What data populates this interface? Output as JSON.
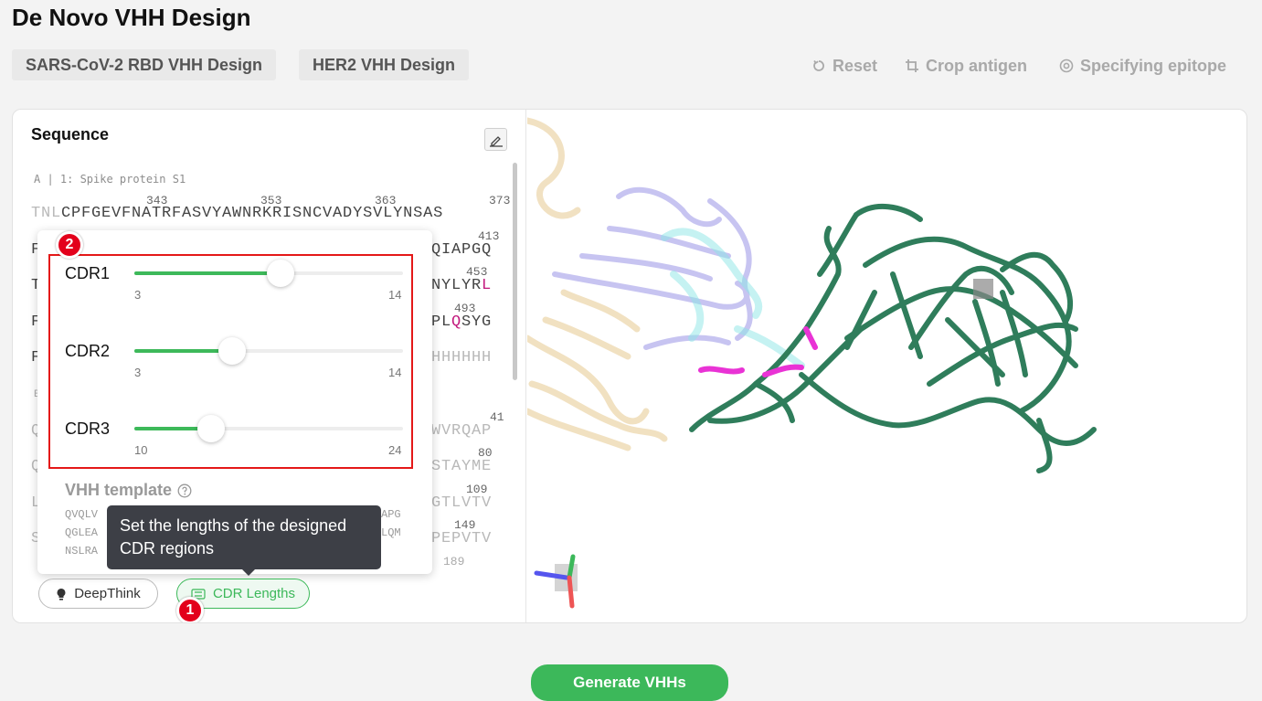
{
  "page_title": "De Novo VHH Design",
  "presets": [
    "SARS-CoV-2 RBD VHH Design",
    "HER2 VHH Design"
  ],
  "toolbar": {
    "reset": "Reset",
    "crop": "Crop antigen",
    "epitope": "Specifying epitope"
  },
  "sequence_panel": {
    "title": "Sequence",
    "chain_label": "A | 1: Spike protein S1",
    "line1": {
      "dim": "TNL",
      "text": "CPFGEVFNATRFASVYAWNRKRISNCVADYSVLYNSAS"
    },
    "line1_numbers": [
      "343",
      "353",
      "363",
      "373"
    ],
    "line2": {
      "left": "F",
      "right": "QIAPGQ"
    },
    "line2_number": "413",
    "line3": {
      "left": "T",
      "right_a": "NYLYR",
      "right_mag": "L"
    },
    "line3_number": "453",
    "line4": {
      "left": "F",
      "right_a": "PL",
      "right_mag": "Q",
      "right_b": "SYG"
    },
    "line4_number": "493",
    "line5": {
      "left": "F",
      "right": "HHHHHH"
    },
    "chain_b_letter": "B",
    "line6": {
      "left": "Q",
      "right": "WVRQAP"
    },
    "line6_number": "41",
    "line7": {
      "left": "Q",
      "right": "STAYME"
    },
    "line7_number": "80",
    "line8": {
      "left": "L",
      "right": "GTLVTV"
    },
    "line8_number": "109",
    "line9": {
      "left": "S",
      "right": "PEPVTV"
    },
    "line9_number": "149",
    "line10_number": "189"
  },
  "cdr_popup": {
    "sliders": [
      {
        "label": "CDR1",
        "min": "3",
        "max": "14",
        "value": 9
      },
      {
        "label": "CDR2",
        "min": "3",
        "max": "14",
        "value": 7
      },
      {
        "label": "CDR3",
        "min": "10",
        "max": "24",
        "value": 14
      }
    ],
    "vhh_template_title": "VHH template",
    "vhh_lines": [
      {
        "left": "QVQLV",
        "right": "APG"
      },
      {
        "left": "QGLEA",
        "right": "LQM"
      },
      {
        "left": "NSLRA",
        "right": ""
      }
    ]
  },
  "tooltip": "Set the lengths of the designed CDR regions",
  "bottom_buttons": {
    "deepthink": "DeepThink",
    "cdr_lengths": "CDR Lengths"
  },
  "annotations": {
    "badge1": "1",
    "badge2": "2"
  },
  "generate_button": "Generate VHHs",
  "colors": {
    "accent": "#3cb85a",
    "annotation_red": "#e3001b",
    "protein_green": "#2f7d5b",
    "highlight_magenta": "#e933d5"
  }
}
